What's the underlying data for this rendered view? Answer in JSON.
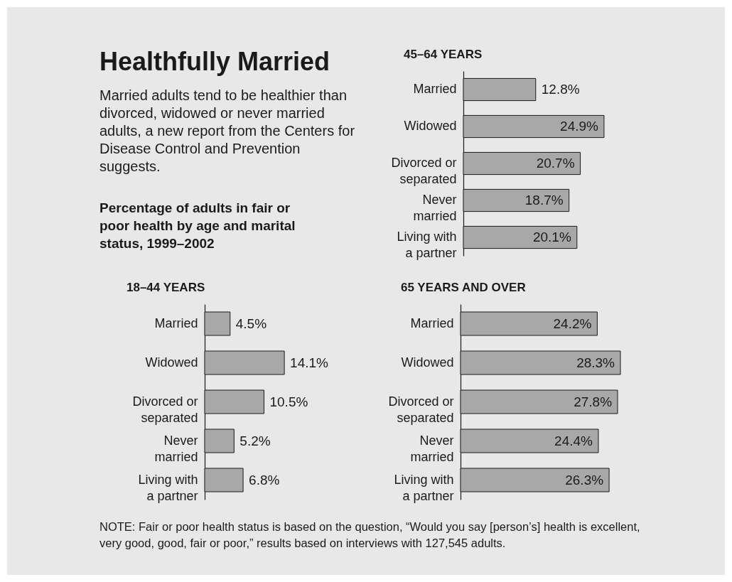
{
  "chart_data": [
    {
      "type": "other",
      "title": "Healthfully Married",
      "subtitle": "Married adults tend to be healthier than divorced, widowed or never married adults, a new report from the Centers for Disease Control and Prevention suggests.",
      "annotations": [
        "Percentage of adults in fair or poor health by age and marital status, 1999–2002",
        "NOTE: Fair or poor health status is based on the question, “Would you say [person’s] health is excellent, very good, good, fair or poor,” results based on interviews with 127,545 adults."
      ]
    },
    {
      "type": "bar",
      "orientation": "horizontal",
      "title": "45–64 YEARS",
      "categories": [
        "Married",
        "Widowed",
        "Divorced or separated",
        "Never married",
        "Living with a partner"
      ],
      "values": [
        12.8,
        24.9,
        20.7,
        18.7,
        20.1
      ],
      "value_labels": [
        "12.8%",
        "24.9%",
        "20.7%",
        "18.7%",
        "20.1%"
      ],
      "color": "#a8a8a8"
    },
    {
      "type": "bar",
      "orientation": "horizontal",
      "title": "18–44 YEARS",
      "categories": [
        "Married",
        "Widowed",
        "Divorced or separated",
        "Never married",
        "Living with a partner"
      ],
      "values": [
        4.5,
        14.1,
        10.5,
        5.2,
        6.8
      ],
      "value_labels": [
        "4.5%",
        "14.1%",
        "10.5%",
        "5.2%",
        "6.8%"
      ],
      "color": "#a8a8a8"
    },
    {
      "type": "bar",
      "orientation": "horizontal",
      "title": "65 YEARS AND OVER",
      "categories": [
        "Married",
        "Widowed",
        "Divorced or separated",
        "Never married",
        "Living with a partner"
      ],
      "values": [
        24.2,
        28.3,
        27.8,
        24.4,
        26.3
      ],
      "value_labels": [
        "24.2%",
        "28.3%",
        "27.8%",
        "24.4%",
        "26.3%"
      ],
      "color": "#a8a8a8"
    }
  ]
}
